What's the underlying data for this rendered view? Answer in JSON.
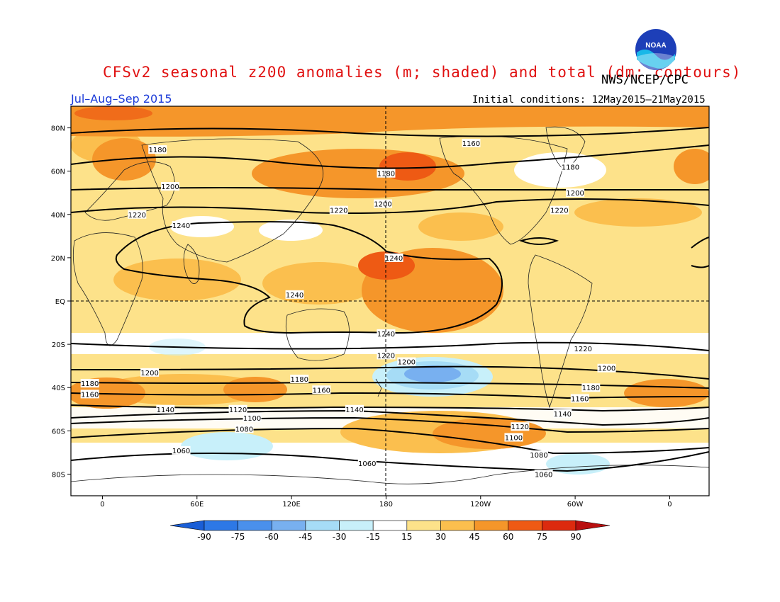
{
  "header": {
    "title": "CFSv2 seasonal z200 anomalies (m; shaded) and total (dm; contours)",
    "agency": "NWS/NCEP/CPC",
    "season": "Jul–Aug–Sep 2015",
    "initial_conditions": "Initial conditions: 12May2015–21May2015",
    "logo_text": "NOAA"
  },
  "map": {
    "lat_labels": [
      "80N",
      "60N",
      "40N",
      "20N",
      "EQ",
      "20S",
      "40S",
      "60S",
      "80S"
    ],
    "lat_values": [
      80,
      60,
      40,
      20,
      0,
      -20,
      -40,
      -60,
      -80
    ],
    "lon_labels": [
      "0",
      "60E",
      "120E",
      "180",
      "120W",
      "60W",
      "0"
    ],
    "lon_values": [
      0,
      60,
      120,
      180,
      240,
      300,
      360
    ],
    "lat_range": [
      -90,
      90
    ],
    "lon_range": [
      -20,
      385
    ]
  },
  "colorbar": {
    "labels": [
      "-90",
      "-75",
      "-60",
      "-45",
      "-30",
      "-15",
      "15",
      "30",
      "45",
      "60",
      "75",
      "90"
    ],
    "colors": [
      "#1a5ed6",
      "#2d78e6",
      "#4a90ec",
      "#78b0f0",
      "#a6dcf6",
      "#c8f0fa",
      "#ffffff",
      "#fde28a",
      "#fbbf4e",
      "#f5962a",
      "#ee5a14",
      "#dc2a0e",
      "#b80f0f"
    ]
  },
  "contours": [
    {
      "label": "1160",
      "lat": 80,
      "labels_at": [
        [
          234,
          73
        ]
      ]
    },
    {
      "label": "1180",
      "lat": 66,
      "labels_at": [
        [
          35,
          70
        ],
        [
          180,
          59
        ],
        [
          297,
          62
        ]
      ]
    },
    {
      "label": "1200",
      "lat": 53,
      "labels_at": [
        [
          43,
          53
        ],
        [
          178,
          45
        ],
        [
          300,
          50
        ]
      ]
    },
    {
      "label": "1220",
      "lat": 40,
      "labels_at": [
        [
          22,
          40
        ],
        [
          150,
          42
        ],
        [
          290,
          42
        ]
      ]
    },
    {
      "label": "1240",
      "lat": 20,
      "labels_at": [
        [
          50,
          35
        ],
        [
          185,
          20
        ],
        [
          122,
          3
        ],
        [
          180,
          -15
        ]
      ]
    },
    {
      "label": "1220",
      "lat": -22,
      "labels_at": [
        [
          180,
          -25
        ],
        [
          305,
          -22
        ]
      ]
    },
    {
      "label": "1200",
      "lat": -32,
      "labels_at": [
        [
          30,
          -33
        ],
        [
          193,
          -28
        ],
        [
          320,
          -31
        ]
      ]
    },
    {
      "label": "1180",
      "lat": -40,
      "labels_at": [
        [
          -8,
          -38
        ],
        [
          125,
          -36
        ],
        [
          310,
          -40
        ]
      ]
    },
    {
      "label": "1160",
      "lat": -45,
      "labels_at": [
        [
          -8,
          -43
        ],
        [
          139,
          -41
        ],
        [
          303,
          -45
        ]
      ]
    },
    {
      "label": "1140",
      "lat": -50,
      "labels_at": [
        [
          40,
          -50
        ],
        [
          160,
          -50
        ],
        [
          292,
          -52
        ]
      ]
    },
    {
      "label": "1120",
      "lat": -54,
      "labels_at": [
        [
          86,
          -50
        ],
        [
          265,
          -58
        ]
      ]
    },
    {
      "label": "1100",
      "lat": -58,
      "labels_at": [
        [
          95,
          -54
        ],
        [
          261,
          -63
        ]
      ]
    },
    {
      "label": "1080",
      "lat": -62,
      "labels_at": [
        [
          90,
          -59
        ],
        [
          277,
          -71
        ]
      ]
    },
    {
      "label": "1060",
      "lat": -69,
      "labels_at": [
        [
          50,
          -69
        ],
        [
          168,
          -75
        ],
        [
          280,
          -80
        ]
      ]
    }
  ]
}
